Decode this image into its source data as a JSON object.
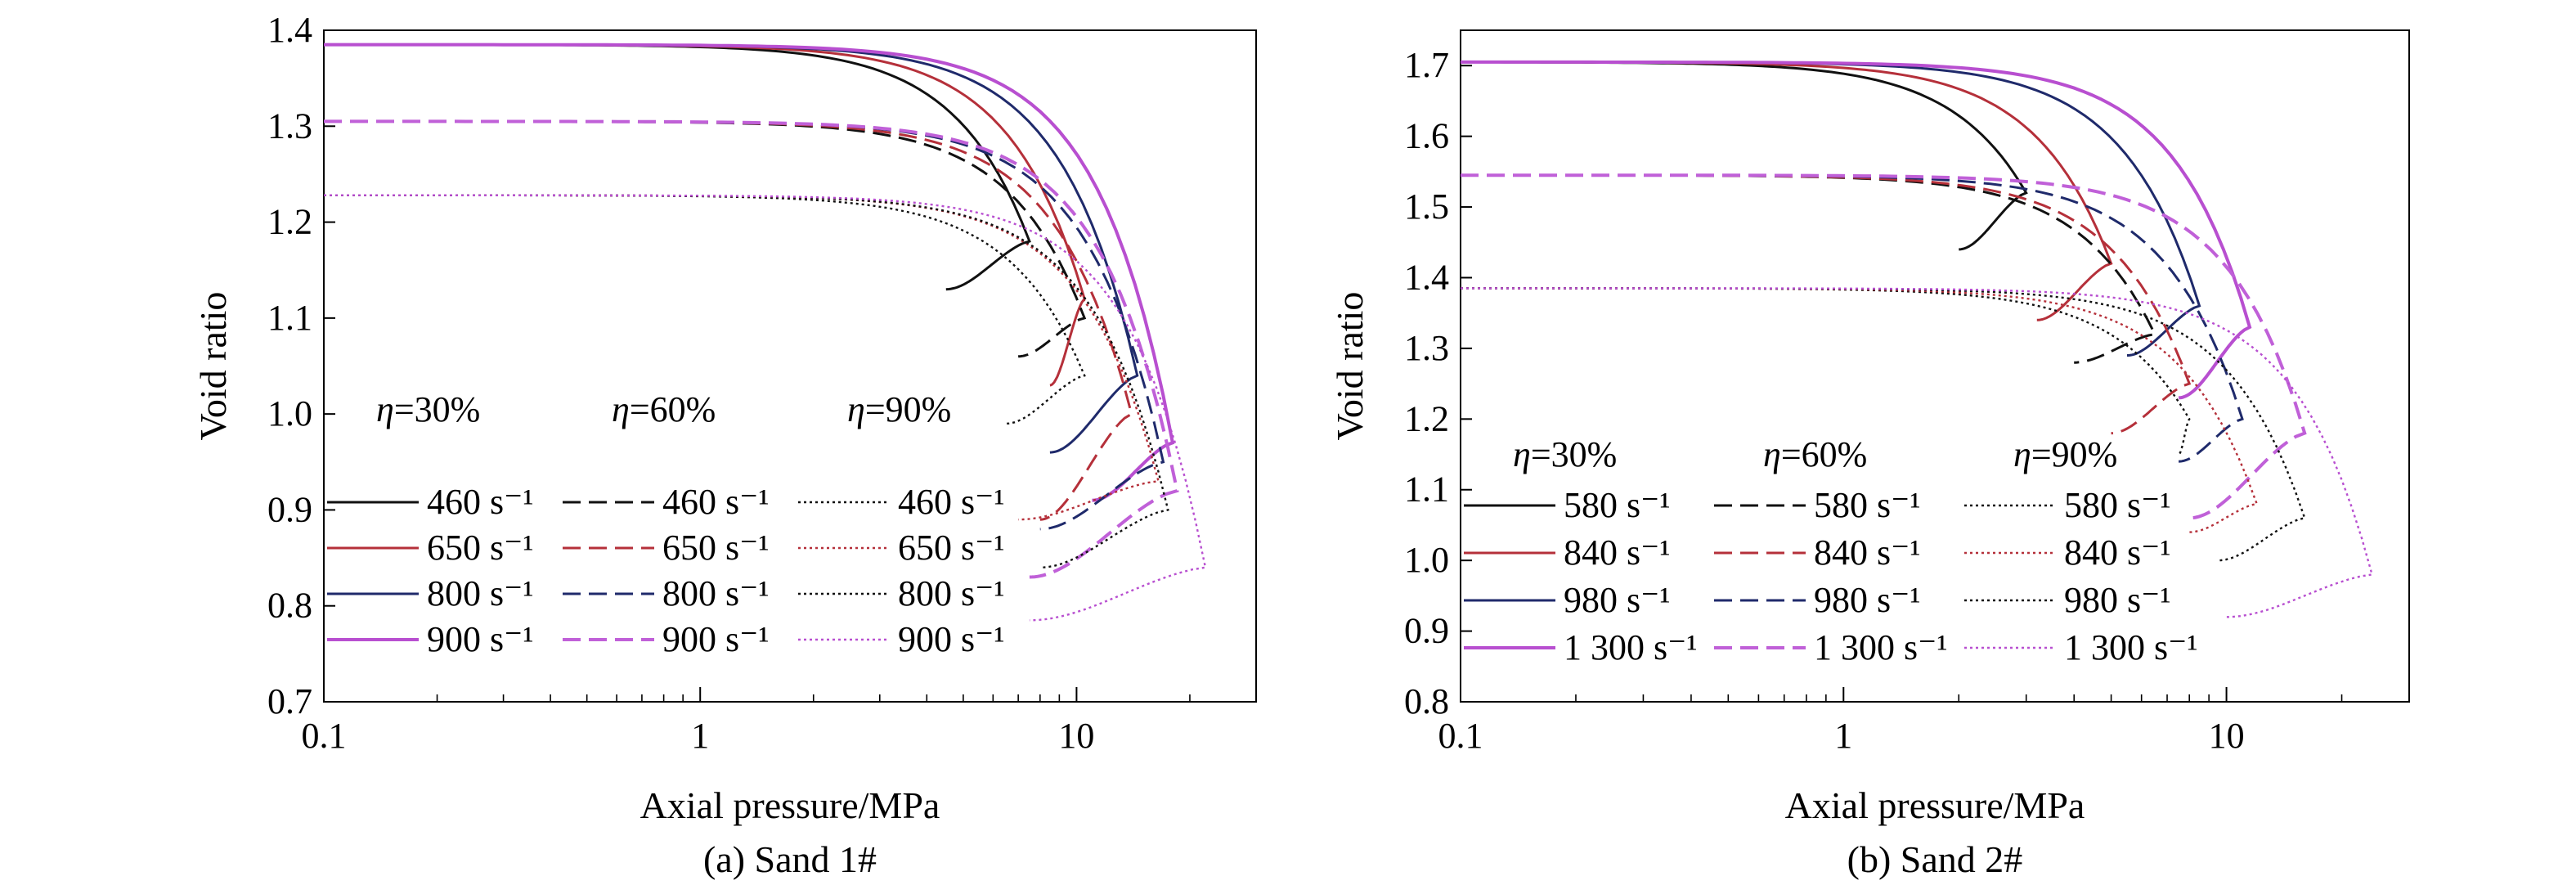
{
  "figure": {
    "captions": [
      "(a) Sand 1#",
      "(b) Sand 2#"
    ]
  },
  "colors": {
    "black": "#111111",
    "red": "#b5303a",
    "navy": "#1f2a6b",
    "purple": "#b84fd0",
    "purple_dashed": "#c060d8"
  },
  "chart_data": [
    {
      "type": "line",
      "caption": "(a) Sand 1#",
      "xlabel": "Axial pressure/MPa",
      "ylabel": "Void ratio",
      "xscale": "log",
      "xlim": [
        0.1,
        30
      ],
      "ylim": [
        0.7,
        1.4
      ],
      "xticks": [
        0.1,
        1,
        10
      ],
      "xtick_labels": [
        "0.1",
        "1",
        "10"
      ],
      "yticks": [
        0.7,
        0.8,
        0.9,
        1.0,
        1.1,
        1.2,
        1.3,
        1.4
      ],
      "ytick_labels": [
        "0.7",
        "0.8",
        "0.9",
        "1.0",
        "1.1",
        "1.2",
        "1.3",
        "1.4"
      ],
      "legend_groups": [
        "η=30%",
        "η=60%",
        "η=90%"
      ],
      "legend_rates": [
        "460 s⁻¹",
        "650 s⁻¹",
        "800 s⁻¹",
        "900 s⁻¹"
      ],
      "series": [
        {
          "group": 0,
          "rate": 0,
          "color": "black",
          "style": "solid",
          "e0": 1.385,
          "peak": 7.5,
          "knee": 4.0,
          "e_peak": 1.18,
          "end_p": 4.5,
          "end_e": 1.13
        },
        {
          "group": 0,
          "rate": 1,
          "color": "red",
          "style": "solid",
          "e0": 1.385,
          "peak": 10.5,
          "knee": 5.0,
          "e_peak": 1.12,
          "end_p": 8.5,
          "end_e": 1.03
        },
        {
          "group": 0,
          "rate": 2,
          "color": "navy",
          "style": "solid",
          "e0": 1.385,
          "peak": 14.5,
          "knee": 6.0,
          "e_peak": 1.04,
          "end_p": 8.5,
          "end_e": 0.96
        },
        {
          "group": 0,
          "rate": 3,
          "color": "purple",
          "style": "solid",
          "e0": 1.385,
          "peak": 18.0,
          "knee": 7.5,
          "e_peak": 0.97,
          "end_p": 11.0,
          "end_e": 0.91
        },
        {
          "group": 1,
          "rate": 0,
          "color": "black",
          "style": "dashed",
          "e0": 1.305,
          "peak": 10.5,
          "knee": 5.0,
          "e_peak": 1.1,
          "end_p": 7.0,
          "end_e": 1.06
        },
        {
          "group": 1,
          "rate": 1,
          "color": "red",
          "style": "dashed",
          "e0": 1.305,
          "peak": 14.0,
          "knee": 6.0,
          "e_peak": 1.0,
          "end_p": 8.0,
          "end_e": 0.89
        },
        {
          "group": 1,
          "rate": 2,
          "color": "navy",
          "style": "dashed",
          "e0": 1.305,
          "peak": 17.0,
          "knee": 7.0,
          "e_peak": 0.95,
          "end_p": 8.0,
          "end_e": 0.88
        },
        {
          "group": 1,
          "rate": 3,
          "color": "purple_dashed",
          "style": "dashed",
          "e0": 1.305,
          "peak": 18.5,
          "knee": 8.0,
          "e_peak": 0.92,
          "end_p": 7.5,
          "end_e": 0.83
        },
        {
          "group": 2,
          "rate": 0,
          "color": "black",
          "style": "dotted",
          "e0": 1.228,
          "peak": 10.5,
          "knee": 5.0,
          "e_peak": 1.04,
          "end_p": 6.5,
          "end_e": 0.99
        },
        {
          "group": 2,
          "rate": 1,
          "color": "red",
          "style": "dotted",
          "e0": 1.228,
          "peak": 16.5,
          "knee": 7.0,
          "e_peak": 0.93,
          "end_p": 7.0,
          "end_e": 0.89
        },
        {
          "group": 2,
          "rate": 2,
          "color": "black",
          "style": "dotted",
          "e0": 1.228,
          "peak": 17.5,
          "knee": 8.0,
          "e_peak": 0.9,
          "end_p": 8.0,
          "end_e": 0.84
        },
        {
          "group": 2,
          "rate": 3,
          "color": "purple",
          "style": "dotted",
          "e0": 1.228,
          "peak": 22.0,
          "knee": 9.0,
          "e_peak": 0.84,
          "end_p": 7.5,
          "end_e": 0.785
        }
      ]
    },
    {
      "type": "line",
      "caption": "(b) Sand 2#",
      "xlabel": "Axial pressure/MPa",
      "ylabel": "Void ratio",
      "xscale": "log",
      "xlim": [
        0.1,
        30
      ],
      "ylim": [
        0.8,
        1.75
      ],
      "xticks": [
        0.1,
        1,
        10
      ],
      "xtick_labels": [
        "0.1",
        "1",
        "10"
      ],
      "yticks": [
        0.8,
        0.9,
        1.0,
        1.1,
        1.2,
        1.3,
        1.4,
        1.5,
        1.6,
        1.7
      ],
      "ytick_labels": [
        "0.8",
        "0.9",
        "1.0",
        "1.1",
        "1.2",
        "1.3",
        "1.4",
        "1.5",
        "1.6",
        "1.7"
      ],
      "legend_groups": [
        "η=30%",
        "η=60%",
        "η=90%"
      ],
      "legend_rates": [
        "580 s⁻¹",
        "840 s⁻¹",
        "980 s⁻¹",
        "1 300 s⁻¹"
      ],
      "series": [
        {
          "group": 0,
          "rate": 0,
          "color": "black",
          "style": "solid",
          "e0": 1.705,
          "peak": 3.0,
          "knee": 1.2,
          "e_peak": 1.52,
          "end_p": 2.0,
          "end_e": 1.44
        },
        {
          "group": 0,
          "rate": 1,
          "color": "red",
          "style": "solid",
          "e0": 1.705,
          "peak": 5.0,
          "knee": 1.8,
          "e_peak": 1.42,
          "end_p": 3.2,
          "end_e": 1.34
        },
        {
          "group": 0,
          "rate": 2,
          "color": "navy",
          "style": "solid",
          "e0": 1.705,
          "peak": 8.5,
          "knee": 2.8,
          "e_peak": 1.36,
          "end_p": 5.5,
          "end_e": 1.29
        },
        {
          "group": 0,
          "rate": 3,
          "color": "purple",
          "style": "solid",
          "e0": 1.705,
          "peak": 11.5,
          "knee": 3.5,
          "e_peak": 1.33,
          "end_p": 7.5,
          "end_e": 1.23
        },
        {
          "group": 1,
          "rate": 0,
          "color": "black",
          "style": "dashed",
          "e0": 1.545,
          "peak": 6.5,
          "knee": 2.5,
          "e_peak": 1.32,
          "end_p": 4.0,
          "end_e": 1.28
        },
        {
          "group": 1,
          "rate": 1,
          "color": "red",
          "style": "dashed",
          "e0": 1.545,
          "peak": 8.0,
          "knee": 3.0,
          "e_peak": 1.25,
          "end_p": 5.0,
          "end_e": 1.18
        },
        {
          "group": 1,
          "rate": 2,
          "color": "navy",
          "style": "dashed",
          "e0": 1.545,
          "peak": 11.0,
          "knee": 4.0,
          "e_peak": 1.2,
          "end_p": 7.5,
          "end_e": 1.14
        },
        {
          "group": 1,
          "rate": 3,
          "color": "purple_dashed",
          "style": "dashed",
          "e0": 1.545,
          "peak": 16.0,
          "knee": 5.0,
          "e_peak": 1.18,
          "end_p": 8.0,
          "end_e": 1.06
        },
        {
          "group": 2,
          "rate": 0,
          "color": "black",
          "style": "dotted",
          "e0": 1.385,
          "peak": 8.0,
          "knee": 3.5,
          "e_peak": 1.2,
          "end_p": 7.5,
          "end_e": 1.15
        },
        {
          "group": 2,
          "rate": 1,
          "color": "red",
          "style": "dotted",
          "e0": 1.385,
          "peak": 12.0,
          "knee": 4.5,
          "e_peak": 1.08,
          "end_p": 8.0,
          "end_e": 1.04
        },
        {
          "group": 2,
          "rate": 2,
          "color": "black",
          "style": "dotted",
          "e0": 1.385,
          "peak": 16.0,
          "knee": 5.5,
          "e_peak": 1.06,
          "end_p": 9.5,
          "end_e": 1.0
        },
        {
          "group": 2,
          "rate": 3,
          "color": "purple",
          "style": "dotted",
          "e0": 1.385,
          "peak": 24.0,
          "knee": 7.0,
          "e_peak": 0.98,
          "end_p": 10.0,
          "end_e": 0.92
        }
      ]
    }
  ]
}
